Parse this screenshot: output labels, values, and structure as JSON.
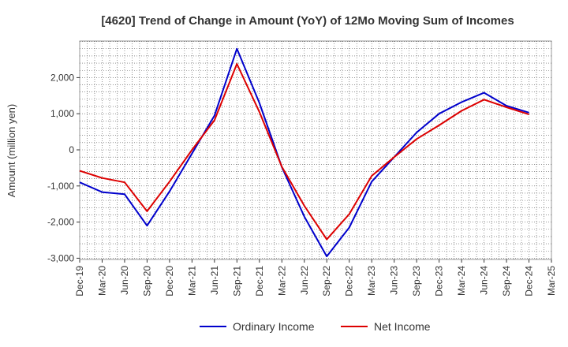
{
  "chart_data": {
    "type": "line",
    "title": "[4620]  Trend of Change in Amount (YoY) of 12Mo Moving Sum of Incomes",
    "xlabel": "",
    "ylabel": "Amount (million yen)",
    "x": [
      "Dec-19",
      "Mar-20",
      "Jun-20",
      "Sep-20",
      "Dec-20",
      "Mar-21",
      "Jun-21",
      "Sep-21",
      "Dec-21",
      "Mar-22",
      "Jun-22",
      "Sep-22",
      "Dec-22",
      "Mar-23",
      "Jun-23",
      "Sep-23",
      "Dec-23",
      "Mar-24",
      "Jun-24",
      "Sep-24",
      "Dec-24",
      "Mar-25"
    ],
    "ylim": [
      -3000,
      3000
    ],
    "yticks": [
      -3000,
      -2000,
      -1000,
      0,
      1000,
      2000
    ],
    "ytick_labels": [
      "-3,000",
      "-2,000",
      "-1,000",
      "0",
      "1,000",
      "2,000"
    ],
    "grid": true,
    "legend_position": "bottom",
    "series": [
      {
        "name": "Ordinary Income",
        "color": "#0000cc",
        "values": [
          -900,
          -1170,
          -1230,
          -2100,
          -1150,
          -100,
          950,
          2800,
          1300,
          -480,
          -1850,
          -2950,
          -2150,
          -880,
          -200,
          480,
          1000,
          1320,
          1580,
          1220,
          1030,
          null
        ]
      },
      {
        "name": "Net Income",
        "color": "#dd0000",
        "values": [
          -580,
          -780,
          -900,
          -1700,
          -880,
          0,
          820,
          2380,
          1050,
          -470,
          -1550,
          -2480,
          -1780,
          -720,
          -200,
          300,
          680,
          1080,
          1390,
          1180,
          980,
          null
        ]
      }
    ]
  }
}
